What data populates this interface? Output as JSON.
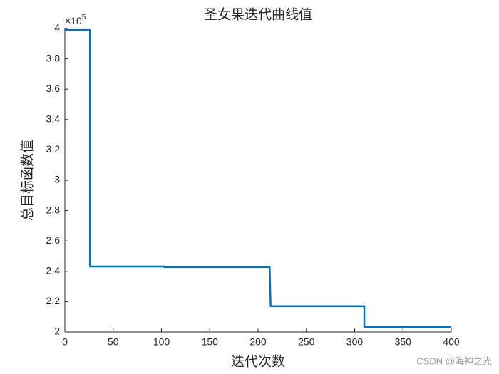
{
  "chart_data": {
    "type": "line",
    "title": "圣女果迭代曲线值",
    "xlabel": "迭代次数",
    "ylabel": "总目标函数值",
    "y_multiplier": {
      "base": "×10",
      "exponent": "5"
    },
    "x": [
      0,
      26,
      26,
      103,
      103,
      212,
      213,
      310,
      310,
      400
    ],
    "series": [
      {
        "color": "#0072bd",
        "values": [
          3.99,
          3.99,
          2.432,
          2.432,
          2.428,
          2.428,
          2.17,
          2.17,
          2.033,
          2.033
        ]
      }
    ],
    "xlim": [
      0,
      400
    ],
    "xticks": [
      0,
      50,
      100,
      150,
      200,
      250,
      300,
      350,
      400
    ],
    "ylim": [
      2,
      4
    ],
    "yticks": [
      2,
      2.2,
      2.4,
      2.6,
      2.8,
      3,
      3.2,
      3.4,
      3.6,
      3.8,
      4
    ],
    "grid": false
  },
  "watermark": "CSDN @海神之光"
}
